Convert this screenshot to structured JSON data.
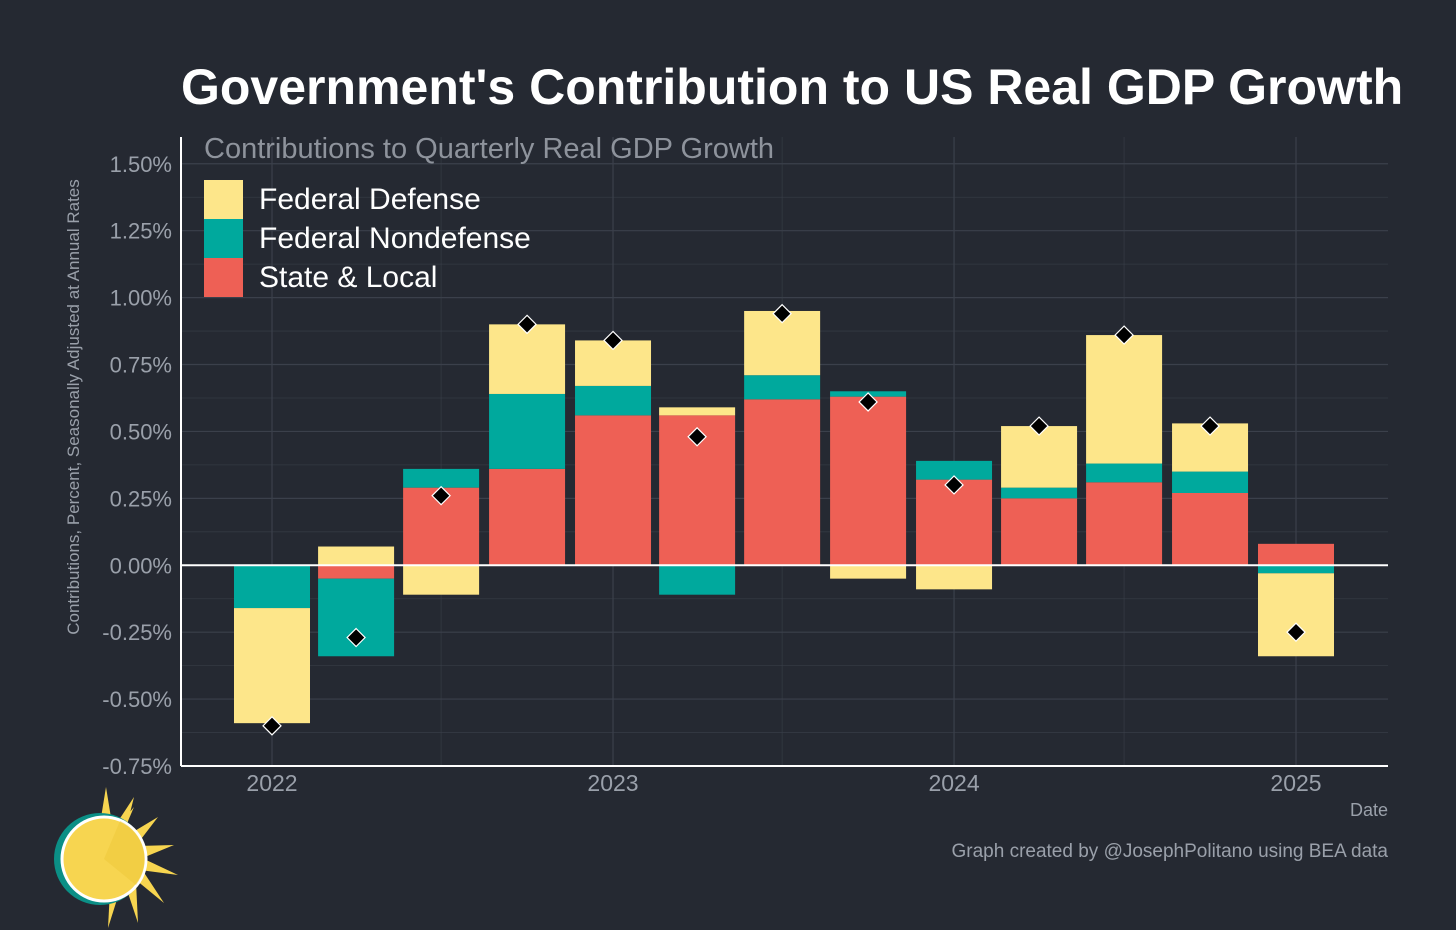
{
  "title": "Government's Contribution to US Real GDP Growth",
  "caption": "Graph created by @JosephPolitano using BEA data",
  "colors": {
    "background": "#252932",
    "federal_defense": "#FDE68A",
    "federal_nondefense": "#00A99D",
    "state_local": "#EE6055",
    "grid": "#3b404b",
    "axis": "#ffffff",
    "total_marker": "#000000"
  },
  "chart_data": {
    "type": "bar",
    "stacked": true,
    "subtitle": "Contributions to Quarterly Real GDP Growth",
    "ylabel": "Contributions, Percent, Seasonally Adjusted at Annual Rates",
    "xlabel": "Date",
    "ylim": [
      -0.75,
      1.6
    ],
    "yticks": [
      -0.75,
      -0.5,
      -0.25,
      0.0,
      0.25,
      0.5,
      0.75,
      1.0,
      1.25,
      1.5
    ],
    "ytick_labels": [
      "-0.75%",
      "-0.50%",
      "-0.25%",
      "0.00%",
      "0.25%",
      "0.50%",
      "0.75%",
      "1.00%",
      "1.25%",
      "1.50%"
    ],
    "xticks": [
      "2022",
      "2023",
      "2024",
      "2025"
    ],
    "grid": true,
    "legend_position": "top-left",
    "categories": [
      "2022-01-01",
      "2022-04-01",
      "2022-07-01",
      "2022-10-01",
      "2023-01-01",
      "2023-04-01",
      "2023-07-01",
      "2023-10-01",
      "2024-01-01",
      "2024-04-01",
      "2024-07-01",
      "2024-10-01",
      "2025-01-01"
    ],
    "series": [
      {
        "name": "State & Local",
        "color_key": "state_local",
        "values": [
          0.0,
          -0.05,
          0.29,
          0.36,
          0.56,
          0.56,
          0.62,
          0.63,
          0.32,
          0.25,
          0.31,
          0.27,
          0.08
        ]
      },
      {
        "name": "Federal Nondefense",
        "color_key": "federal_nondefense",
        "values": [
          -0.16,
          -0.29,
          0.07,
          0.28,
          0.11,
          -0.11,
          0.09,
          0.02,
          0.07,
          0.04,
          0.07,
          0.08,
          -0.03
        ]
      },
      {
        "name": "Federal Defense",
        "color_key": "federal_defense",
        "values": [
          -0.43,
          0.07,
          -0.11,
          0.26,
          0.17,
          0.03,
          0.24,
          -0.05,
          -0.09,
          0.23,
          0.48,
          0.18,
          -0.31
        ]
      }
    ],
    "totals": {
      "name": "Total",
      "values": [
        -0.6,
        -0.27,
        0.26,
        0.9,
        0.84,
        0.48,
        0.94,
        0.61,
        0.3,
        0.52,
        0.86,
        0.52,
        -0.25
      ]
    }
  }
}
